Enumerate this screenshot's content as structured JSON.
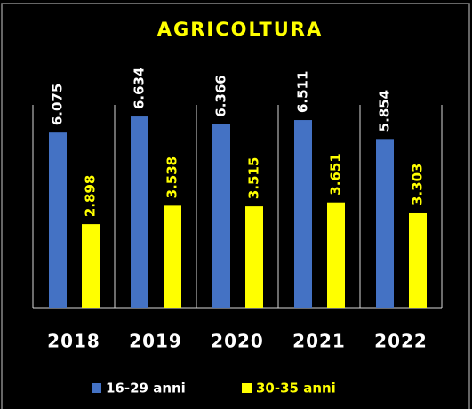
{
  "chart_data": {
    "type": "bar",
    "title": "AGRICOLTURA",
    "categories": [
      "2018",
      "2019",
      "2020",
      "2021",
      "2022"
    ],
    "series": [
      {
        "name": "16-29 anni",
        "color": "#4472c4",
        "values": [
          6075,
          6634,
          6366,
          6511,
          5854
        ],
        "value_labels": [
          "6.075",
          "6.634",
          "6.366",
          "6.511",
          "5.854"
        ]
      },
      {
        "name": "30-35 anni",
        "color": "#ffff00",
        "values": [
          2898,
          3538,
          3515,
          3651,
          3303
        ],
        "value_labels": [
          "2.898",
          "3.538",
          "3.515",
          "3.651",
          "3.303"
        ]
      }
    ],
    "legend": "bottom"
  }
}
